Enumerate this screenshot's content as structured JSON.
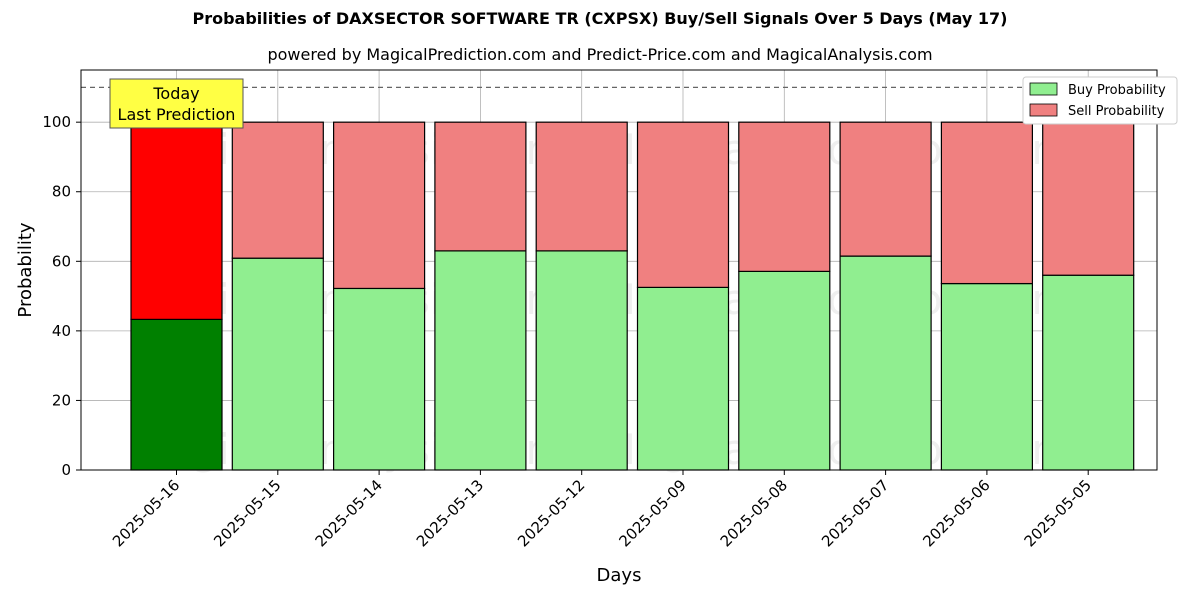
{
  "title": "Probabilities of DAXSECTOR SOFTWARE TR (CXPSX) Buy/Sell Signals Over 5 Days (May 17)",
  "subtitle": "powered by MagicalPrediction.com and Predict-Price.com and MagicalAnalysis.com",
  "watermarks": [
    "MagicalAnalysis.com",
    "MagicalPrediction.com"
  ],
  "annotation": {
    "line1": "Today",
    "line2": "Last Prediction"
  },
  "colors": {
    "buy_today": "#008000",
    "sell_today": "#ff0000",
    "buy": "#90ee90",
    "sell": "#f08080",
    "annotation_bg": "#ffff44"
  },
  "chart_data": {
    "type": "bar",
    "stacked": true,
    "categories": [
      "2025-05-16",
      "2025-05-15",
      "2025-05-14",
      "2025-05-13",
      "2025-05-12",
      "2025-05-09",
      "2025-05-08",
      "2025-05-07",
      "2025-05-06",
      "2025-05-05"
    ],
    "series": [
      {
        "name": "Buy Probability",
        "values": [
          43.3,
          60.9,
          52.2,
          63.0,
          63.0,
          52.5,
          57.1,
          61.5,
          53.6,
          56.0
        ]
      },
      {
        "name": "Sell Probability",
        "values": [
          56.7,
          39.1,
          47.8,
          37.0,
          37.0,
          47.5,
          42.9,
          38.5,
          46.4,
          44.0
        ]
      }
    ],
    "xlabel": "Days",
    "ylabel": "Probability",
    "ylim": [
      0,
      115
    ],
    "yticks": [
      0,
      20,
      40,
      60,
      80,
      100
    ],
    "reference_line": 110,
    "grid": true,
    "legend_position": "top-right"
  }
}
